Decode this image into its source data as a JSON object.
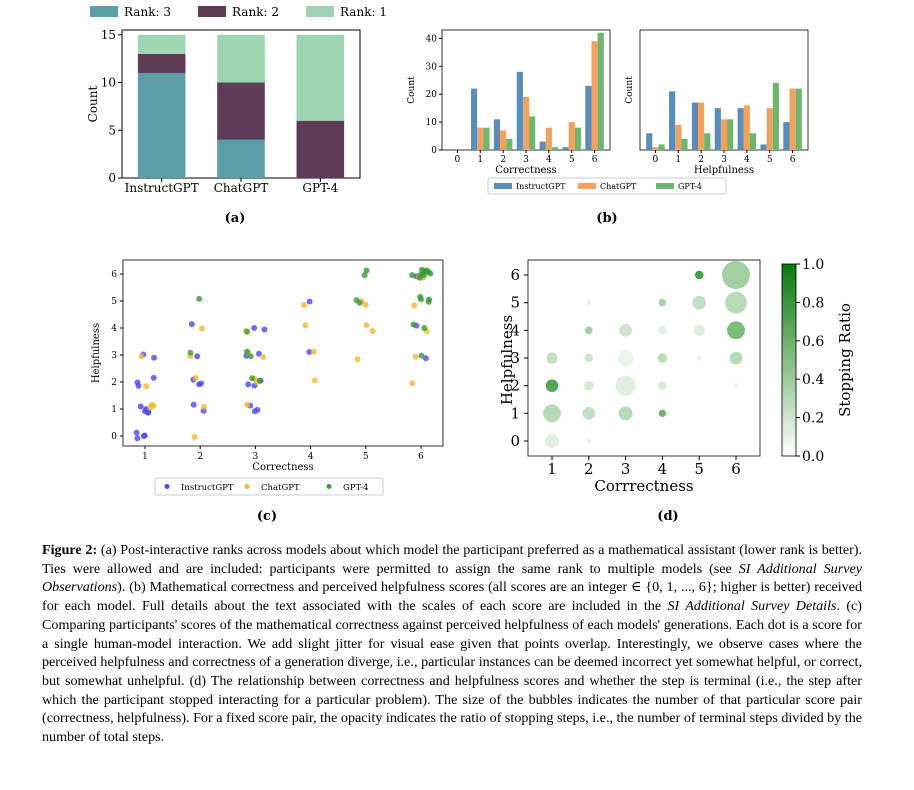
{
  "caption": {
    "label": "Figure 2:",
    "part1": "(a) Post-interactive ranks across models about which model the participant preferred as a mathematical assistant (lower rank is better). Ties were allowed and are included: participants were permitted to assign the same rank to multiple models (see ",
    "ref1": "SI Additional Survey Observations",
    "part2": "). (b) Mathematical correctness and perceived helpfulness scores (all scores are an integer ∈ {0, 1, ..., 6}; higher is better) received for each model. Full details about the text associated with the scales of each score are included in the ",
    "ref2": "SI Additional Survey Details",
    "part3": ". (c) Comparing participants' scores of the mathematical correctness against perceived helpfulness of each models' generations. Each dot is a score for a single human-model interaction. We add slight jitter for visual ease given that points overlap. Interestingly, we observe cases where the perceived helpfulness and correctness of a generation diverge, i.e., particular instances can be deemed incorrect yet somewhat helpful, or correct, but somewhat unhelpful. (d) The relationship between correctness and helpfulness scores and whether the step is terminal (i.e., the step after which the participant stopped interacting for a particular problem). The size of the bubbles indicates the number of that particular score pair (correctness, helpfulness). For a fixed score pair, the opacity indicates the ratio of stopping steps, i.e., the number of terminal steps divided by the number of total steps."
  },
  "chart_data": [
    {
      "id": "a",
      "panel_label": "(a)",
      "type": "bar",
      "stacked": true,
      "categories": [
        "InstructGPT",
        "ChatGPT",
        "GPT-4"
      ],
      "series": [
        {
          "name": "Rank: 3",
          "color": "#5b9ea8",
          "values": [
            11,
            4,
            0
          ]
        },
        {
          "name": "Rank: 2",
          "color": "#5e3c58",
          "values": [
            2,
            6,
            6
          ]
        },
        {
          "name": "Rank: 1",
          "color": "#9ed4b0",
          "values": [
            2,
            5,
            9
          ]
        }
      ],
      "xlabel": "",
      "ylabel": "Count",
      "ylim": [
        0,
        15.5
      ],
      "yticks": [
        0,
        5,
        10,
        15
      ],
      "legend_position": "top"
    },
    {
      "id": "b1",
      "panel_label": "(b)",
      "type": "bar",
      "categories": [
        "0",
        "1",
        "2",
        "3",
        "4",
        "5",
        "6"
      ],
      "series": [
        {
          "name": "InstructGPT",
          "color": "#5b8db8",
          "values": [
            0,
            22,
            11,
            28,
            3,
            1,
            23
          ]
        },
        {
          "name": "ChatGPT",
          "color": "#f0a35e",
          "values": [
            0,
            8,
            7,
            19,
            8,
            10,
            39
          ]
        },
        {
          "name": "GPT-4",
          "color": "#6fb46f",
          "values": [
            0,
            8,
            4,
            12,
            1,
            8,
            42
          ]
        }
      ],
      "xlabel": "Correctness",
      "ylabel": "Count",
      "ylim": [
        0,
        43
      ],
      "yticks": [
        0,
        10,
        20,
        30,
        40
      ],
      "legend_position": "bottom"
    },
    {
      "id": "b2",
      "type": "bar",
      "categories": [
        "0",
        "1",
        "2",
        "3",
        "4",
        "5",
        "6"
      ],
      "series": [
        {
          "name": "InstructGPT",
          "color": "#5b8db8",
          "values": [
            6,
            21,
            17,
            15,
            15,
            2,
            10
          ]
        },
        {
          "name": "ChatGPT",
          "color": "#f0a35e",
          "values": [
            1,
            9,
            17,
            11,
            16,
            15,
            22
          ]
        },
        {
          "name": "GPT-4",
          "color": "#6fb46f",
          "values": [
            2,
            4,
            6,
            11,
            6,
            24,
            22
          ]
        }
      ],
      "xlabel": "Helpfulness",
      "ylabel": "Count",
      "ylim": [
        0,
        43
      ]
    },
    {
      "id": "c",
      "panel_label": "(c)",
      "type": "scatter",
      "jitter": 0.18,
      "series": [
        {
          "name": "InstructGPT",
          "color": "#4b4bea",
          "points": [
            [
              1,
              0
            ],
            [
              1,
              0
            ],
            [
              1,
              0
            ],
            [
              1,
              0
            ],
            [
              1,
              1
            ],
            [
              1,
              1
            ],
            [
              1,
              1
            ],
            [
              1,
              1
            ],
            [
              1,
              1
            ],
            [
              1,
              1
            ],
            [
              1,
              2
            ],
            [
              1,
              2
            ],
            [
              1,
              2
            ],
            [
              1,
              3
            ],
            [
              1,
              3
            ],
            [
              2,
              1
            ],
            [
              2,
              1
            ],
            [
              2,
              2
            ],
            [
              2,
              2
            ],
            [
              2,
              2
            ],
            [
              2,
              3
            ],
            [
              2,
              4
            ],
            [
              3,
              1
            ],
            [
              3,
              1
            ],
            [
              3,
              1
            ],
            [
              3,
              2
            ],
            [
              3,
              2
            ],
            [
              3,
              2
            ],
            [
              3,
              3
            ],
            [
              3,
              3
            ],
            [
              3,
              4
            ],
            [
              3,
              4
            ],
            [
              4,
              3
            ],
            [
              4,
              5
            ],
            [
              6,
              6
            ],
            [
              6,
              3
            ],
            [
              6,
              4
            ]
          ]
        },
        {
          "name": "ChatGPT",
          "color": "#f2b630",
          "points": [
            [
              1,
              1
            ],
            [
              1,
              1
            ],
            [
              1,
              1
            ],
            [
              1,
              2
            ],
            [
              1,
              3
            ],
            [
              2,
              0
            ],
            [
              2,
              1
            ],
            [
              2,
              2
            ],
            [
              2,
              3
            ],
            [
              2,
              4
            ],
            [
              3,
              1
            ],
            [
              3,
              2
            ],
            [
              3,
              2
            ],
            [
              3,
              3
            ],
            [
              3,
              3
            ],
            [
              3,
              4
            ],
            [
              4,
              2
            ],
            [
              4,
              3
            ],
            [
              4,
              4
            ],
            [
              4,
              5
            ],
            [
              5,
              3
            ],
            [
              5,
              4
            ],
            [
              5,
              4
            ],
            [
              5,
              5
            ],
            [
              5,
              5
            ],
            [
              6,
              2
            ],
            [
              6,
              3
            ],
            [
              6,
              4
            ],
            [
              6,
              5
            ],
            [
              6,
              6
            ],
            [
              6,
              6
            ],
            [
              6,
              6
            ]
          ]
        },
        {
          "name": "GPT-4",
          "color": "#3a9a3a",
          "points": [
            [
              2,
              3
            ],
            [
              2,
              5
            ],
            [
              3,
              2
            ],
            [
              3,
              2
            ],
            [
              3,
              3
            ],
            [
              3,
              3
            ],
            [
              3,
              4
            ],
            [
              5,
              5
            ],
            [
              5,
              5
            ],
            [
              5,
              6
            ],
            [
              5,
              6
            ],
            [
              6,
              3
            ],
            [
              6,
              4
            ],
            [
              6,
              4
            ],
            [
              6,
              5
            ],
            [
              6,
              5
            ],
            [
              6,
              5
            ],
            [
              6,
              5
            ],
            [
              6,
              6
            ],
            [
              6,
              6
            ],
            [
              6,
              6
            ],
            [
              6,
              6
            ],
            [
              6,
              6
            ],
            [
              6,
              6
            ],
            [
              6,
              6
            ],
            [
              6,
              6
            ],
            [
              6,
              6
            ],
            [
              6,
              6
            ]
          ]
        }
      ],
      "xlabel": "Correctness",
      "ylabel": "Helpfulness",
      "xticks": [
        1,
        2,
        3,
        4,
        5,
        6
      ],
      "yticks": [
        0,
        1,
        2,
        3,
        4,
        5,
        6
      ],
      "legend_position": "bottom"
    },
    {
      "id": "d",
      "panel_label": "(d)",
      "type": "scatter",
      "encoding": "bubble size = count of score pair, opacity = stopping ratio",
      "points": [
        {
          "x": 1,
          "y": 0,
          "count": 5,
          "ratio": 0.15
        },
        {
          "x": 1,
          "y": 1,
          "count": 9,
          "ratio": 0.35
        },
        {
          "x": 1,
          "y": 2,
          "count": 4,
          "ratio": 0.85
        },
        {
          "x": 1,
          "y": 3,
          "count": 3,
          "ratio": 0.3
        },
        {
          "x": 2,
          "y": 0,
          "count": 0.3,
          "ratio": 0.1
        },
        {
          "x": 2,
          "y": 1,
          "count": 4,
          "ratio": 0.3
        },
        {
          "x": 2,
          "y": 2,
          "count": 2,
          "ratio": 0.2
        },
        {
          "x": 2,
          "y": 3,
          "count": 1.5,
          "ratio": 0.25
        },
        {
          "x": 2,
          "y": 4,
          "count": 1.2,
          "ratio": 0.45
        },
        {
          "x": 2,
          "y": 5,
          "count": 0.3,
          "ratio": 0.1
        },
        {
          "x": 3,
          "y": 1,
          "count": 5,
          "ratio": 0.35
        },
        {
          "x": 3,
          "y": 2,
          "count": 12,
          "ratio": 0.15
        },
        {
          "x": 3,
          "y": 3,
          "count": 7,
          "ratio": 0.1
        },
        {
          "x": 3,
          "y": 4,
          "count": 4,
          "ratio": 0.25
        },
        {
          "x": 4,
          "y": 1,
          "count": 1,
          "ratio": 0.7
        },
        {
          "x": 4,
          "y": 2,
          "count": 1.5,
          "ratio": 0.2
        },
        {
          "x": 4,
          "y": 3,
          "count": 2,
          "ratio": 0.35
        },
        {
          "x": 4,
          "y": 4,
          "count": 1.5,
          "ratio": 0.15
        },
        {
          "x": 4,
          "y": 5,
          "count": 1.2,
          "ratio": 0.4
        },
        {
          "x": 5,
          "y": 3,
          "count": 0.4,
          "ratio": 0.1
        },
        {
          "x": 5,
          "y": 4,
          "count": 3,
          "ratio": 0.15
        },
        {
          "x": 5,
          "y": 5,
          "count": 5,
          "ratio": 0.3
        },
        {
          "x": 5,
          "y": 6,
          "count": 1.5,
          "ratio": 0.9
        },
        {
          "x": 6,
          "y": 2,
          "count": 0.3,
          "ratio": 0.1
        },
        {
          "x": 6,
          "y": 3,
          "count": 4,
          "ratio": 0.35
        },
        {
          "x": 6,
          "y": 4,
          "count": 9,
          "ratio": 0.65
        },
        {
          "x": 6,
          "y": 5,
          "count": 14,
          "ratio": 0.35
        },
        {
          "x": 6,
          "y": 6,
          "count": 24,
          "ratio": 0.45
        }
      ],
      "xlabel": "Corrrectness",
      "ylabel": "Helpfulness",
      "colorbar_label": "Stopping Ratio",
      "colorbar_ticks": [
        "0.0",
        "0.2",
        "0.4",
        "0.6",
        "0.8",
        "1.0"
      ],
      "xticks": [
        1,
        2,
        3,
        4,
        5,
        6
      ],
      "yticks": [
        0,
        1,
        2,
        3,
        4,
        5,
        6
      ]
    }
  ]
}
